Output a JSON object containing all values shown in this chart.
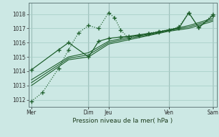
{
  "bg_color": "#cce8e4",
  "grid_color": "#a8cfc8",
  "line_color": "#1a5c28",
  "plot_bg": "#cce8e4",
  "xlabel_text": "Pression niveau de la mer( hPa )",
  "ylim": [
    1011.5,
    1018.8
  ],
  "xlim": [
    0,
    9.4
  ],
  "ytick_positions": [
    1012,
    1013,
    1014,
    1015,
    1016,
    1017,
    1018
  ],
  "xtick_positions": [
    0.15,
    3.0,
    4.0,
    7.0,
    9.2
  ],
  "xtick_labels": [
    "Mer",
    "Dim",
    "Jeu",
    "Ven",
    "Sam"
  ],
  "day_lines_x": [
    0.15,
    3.0,
    4.0,
    7.0,
    9.2
  ],
  "series_dotted": {
    "x": [
      0.15,
      0.7,
      1.5,
      2.0,
      2.5,
      3.0,
      3.5,
      4.0,
      4.3,
      4.6,
      5.0,
      5.5,
      6.0,
      6.5,
      7.0,
      7.5,
      8.0,
      8.5,
      9.2
    ],
    "y": [
      1011.9,
      1012.5,
      1014.2,
      1015.5,
      1016.7,
      1017.2,
      1017.0,
      1018.1,
      1017.75,
      1016.9,
      1016.3,
      1016.5,
      1016.65,
      1016.8,
      1016.9,
      1017.1,
      1018.1,
      1017.05,
      1018.0
    ]
  },
  "series_solid1": {
    "x": [
      0.15,
      2.0,
      3.0,
      4.0,
      5.0,
      6.0,
      7.0,
      8.0,
      9.2
    ],
    "y": [
      1013.0,
      1014.8,
      1015.0,
      1015.9,
      1016.2,
      1016.5,
      1016.8,
      1017.0,
      1017.5
    ]
  },
  "series_solid2": {
    "x": [
      0.15,
      2.0,
      3.0,
      4.0,
      5.0,
      6.0,
      7.0,
      8.0,
      9.2
    ],
    "y": [
      1013.2,
      1014.9,
      1015.15,
      1016.0,
      1016.3,
      1016.55,
      1016.85,
      1017.1,
      1017.6
    ]
  },
  "series_solid3": {
    "x": [
      0.15,
      2.0,
      3.0,
      4.0,
      5.0,
      6.0,
      7.0,
      8.0,
      9.2
    ],
    "y": [
      1013.4,
      1015.0,
      1015.3,
      1016.1,
      1016.4,
      1016.6,
      1016.9,
      1017.2,
      1017.7
    ]
  },
  "series_marked": {
    "x": [
      0.15,
      1.5,
      2.0,
      3.0,
      3.5,
      4.0,
      4.6,
      5.0,
      5.5,
      6.0,
      6.5,
      7.0,
      7.5,
      8.0,
      8.5,
      9.2
    ],
    "y": [
      1014.1,
      1015.5,
      1016.0,
      1015.0,
      1016.1,
      1016.3,
      1016.4,
      1016.45,
      1016.55,
      1016.65,
      1016.75,
      1016.9,
      1017.0,
      1018.1,
      1017.05,
      1017.9
    ]
  }
}
